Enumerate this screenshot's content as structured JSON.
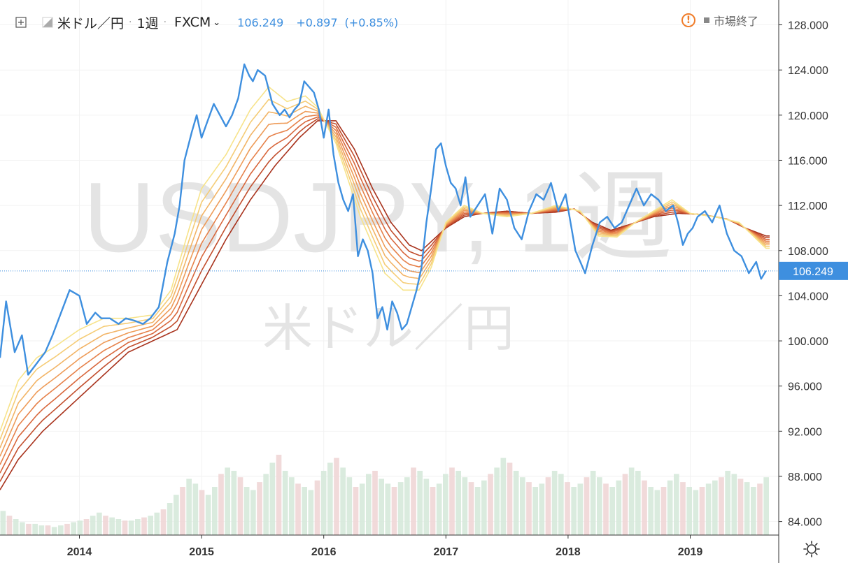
{
  "header": {
    "symbol": "米ドル／円",
    "interval": "1週",
    "exchange": "FXCM",
    "price": "106.249",
    "change": "+0.897",
    "change_pct": "(+0.85%)"
  },
  "status": {
    "market": "市場終了"
  },
  "watermark": {
    "main": "USDJPY, 1週",
    "sub": "米ドル／円"
  },
  "colors": {
    "price_line": "#3e8fdf",
    "ribbon_fast": "#f7e38a",
    "ribbon_slow": "#a8321c",
    "vol_up": "#d6e9da",
    "vol_down": "#f0d6d6",
    "warning": "#f07d2a"
  },
  "chart_data": {
    "type": "line",
    "title": "米ドル／円, 1週",
    "price_label": "106.249",
    "x_axis": {
      "start_year": 2013.35,
      "end_year": 2019.65,
      "ticks": [
        "2014",
        "2015",
        "2016",
        "2017",
        "2018",
        "2019"
      ],
      "tick_years": [
        2014,
        2015,
        2016,
        2017,
        2018,
        2019
      ]
    },
    "y_axis": {
      "range": [
        82.8,
        130.2
      ],
      "ticks": [
        "84.000",
        "88.000",
        "92.000",
        "96.000",
        "100.000",
        "104.000",
        "108.000",
        "112.000",
        "116.000",
        "120.000",
        "124.000",
        "128.000"
      ],
      "tick_values": [
        84,
        88,
        92,
        96,
        100,
        104,
        108,
        112,
        116,
        120,
        124,
        128
      ]
    },
    "price": {
      "x": [
        2013.35,
        2013.4,
        2013.47,
        2013.53,
        2013.58,
        2013.65,
        2013.72,
        2013.78,
        2013.85,
        2013.92,
        2014.0,
        2014.06,
        2014.13,
        2014.18,
        2014.25,
        2014.32,
        2014.38,
        2014.45,
        2014.52,
        2014.58,
        2014.65,
        2014.72,
        2014.78,
        2014.82,
        2014.86,
        2014.92,
        2014.96,
        2015.0,
        2015.05,
        2015.1,
        2015.15,
        2015.2,
        2015.25,
        2015.3,
        2015.35,
        2015.39,
        2015.42,
        2015.46,
        2015.52,
        2015.58,
        2015.64,
        2015.68,
        2015.72,
        2015.76,
        2015.8,
        2015.84,
        2015.88,
        2015.92,
        2015.96,
        2016.0,
        2016.04,
        2016.08,
        2016.12,
        2016.16,
        2016.2,
        2016.24,
        2016.28,
        2016.32,
        2016.36,
        2016.4,
        2016.44,
        2016.48,
        2016.52,
        2016.56,
        2016.6,
        2016.64,
        2016.68,
        2016.72,
        2016.76,
        2016.8,
        2016.84,
        2016.88,
        2016.92,
        2016.96,
        2017.0,
        2017.04,
        2017.08,
        2017.12,
        2017.16,
        2017.2,
        2017.26,
        2017.32,
        2017.38,
        2017.44,
        2017.5,
        2017.56,
        2017.62,
        2017.68,
        2017.74,
        2017.8,
        2017.86,
        2017.92,
        2017.98,
        2018.02,
        2018.06,
        2018.1,
        2018.14,
        2018.2,
        2018.26,
        2018.32,
        2018.38,
        2018.44,
        2018.5,
        2018.56,
        2018.62,
        2018.68,
        2018.74,
        2018.8,
        2018.86,
        2018.9,
        2018.94,
        2018.98,
        2019.02,
        2019.06,
        2019.12,
        2019.18,
        2019.24,
        2019.3,
        2019.36,
        2019.42,
        2019.48,
        2019.54,
        2019.58,
        2019.62
      ],
      "y": [
        98.5,
        103.5,
        99.0,
        100.5,
        97.0,
        98.0,
        99.0,
        100.5,
        102.5,
        104.5,
        104.0,
        101.5,
        102.5,
        102.0,
        102.0,
        101.5,
        102.0,
        101.8,
        101.5,
        102.0,
        103.0,
        107.0,
        109.5,
        112.0,
        116.0,
        118.5,
        120.0,
        118.0,
        119.5,
        121.0,
        120.0,
        119.0,
        120.0,
        121.5,
        124.5,
        123.5,
        123.0,
        124.0,
        123.5,
        121.0,
        120.0,
        120.5,
        119.8,
        120.5,
        121.0,
        123.0,
        122.5,
        122.0,
        120.5,
        118.0,
        120.5,
        116.5,
        114.0,
        112.5,
        111.5,
        113.0,
        107.5,
        109.0,
        108.0,
        106.0,
        102.0,
        103.0,
        101.0,
        103.5,
        102.5,
        101.0,
        101.5,
        103.0,
        104.5,
        106.5,
        110.5,
        113.5,
        117.0,
        117.5,
        115.5,
        114.0,
        113.5,
        112.0,
        114.5,
        111.0,
        112.0,
        113.0,
        109.5,
        113.5,
        112.5,
        110.0,
        109.0,
        111.5,
        113.0,
        112.5,
        114.0,
        111.5,
        113.0,
        110.5,
        108.0,
        107.0,
        106.0,
        108.5,
        110.5,
        111.0,
        110.0,
        110.5,
        112.0,
        113.5,
        112.0,
        113.0,
        112.5,
        111.5,
        112.0,
        110.5,
        108.5,
        109.5,
        110.0,
        111.0,
        111.5,
        110.5,
        112.0,
        109.5,
        108.0,
        107.5,
        106.0,
        107.0,
        105.5,
        106.2
      ],
      "color": "#3e8fdf"
    },
    "ribbon": {
      "lines": 8,
      "fast_x": [
        2013.35,
        2013.5,
        2013.65,
        2013.8,
        2014.0,
        2014.2,
        2014.4,
        2014.6,
        2014.75,
        2014.9,
        2015.0,
        2015.2,
        2015.4,
        2015.55,
        2015.7,
        2015.85,
        2015.95,
        2016.1,
        2016.3,
        2016.5,
        2016.65,
        2016.78,
        2016.88,
        2017.0,
        2017.15,
        2017.3,
        2017.5,
        2017.7,
        2017.9,
        2018.1,
        2018.25,
        2018.4,
        2018.55,
        2018.7,
        2018.85,
        2019.0,
        2019.2,
        2019.4,
        2019.62
      ],
      "fast_y": [
        92.0,
        96.5,
        98.5,
        99.5,
        101.0,
        102.0,
        102.0,
        102.3,
        104.5,
        110.0,
        113.5,
        116.5,
        120.5,
        122.5,
        121.2,
        121.7,
        120.7,
        117.5,
        111.0,
        106.0,
        104.5,
        104.5,
        106.5,
        110.5,
        112.0,
        111.3,
        111.0,
        111.3,
        112.0,
        111.5,
        109.3,
        109.2,
        110.5,
        111.5,
        112.5,
        111.3,
        111.0,
        110.5,
        108.2
      ],
      "slow_x": [
        2013.35,
        2013.5,
        2013.7,
        2014.0,
        2014.2,
        2014.4,
        2014.6,
        2014.8,
        2015.0,
        2015.2,
        2015.4,
        2015.6,
        2015.8,
        2015.95,
        2016.1,
        2016.25,
        2016.4,
        2016.55,
        2016.7,
        2016.8,
        2016.9,
        2017.0,
        2017.15,
        2017.3,
        2017.5,
        2017.7,
        2017.9,
        2018.05,
        2018.2,
        2018.35,
        2018.5,
        2018.7,
        2018.9,
        2019.1,
        2019.3,
        2019.45,
        2019.62
      ],
      "slow_y": [
        86.8,
        89.5,
        92.0,
        95.0,
        97.0,
        99.0,
        100.0,
        101.0,
        105.0,
        109.0,
        112.5,
        115.5,
        118.0,
        119.5,
        119.5,
        117.0,
        113.5,
        110.5,
        108.5,
        108.0,
        109.0,
        110.0,
        111.0,
        111.3,
        111.5,
        111.3,
        111.4,
        111.7,
        110.5,
        109.8,
        110.3,
        111.0,
        111.3,
        111.2,
        110.8,
        110.0,
        109.3
      ],
      "colors": [
        "#f7e38a",
        "#f5cc76",
        "#f2b466",
        "#ee9b58",
        "#e6814a",
        "#d8673c",
        "#c24e2d",
        "#a8321c"
      ]
    },
    "volume": {
      "note": "background volume bars, relative heights 0-1",
      "heights": [
        0.15,
        0.12,
        0.1,
        0.08,
        0.07,
        0.07,
        0.06,
        0.06,
        0.05,
        0.06,
        0.07,
        0.08,
        0.09,
        0.1,
        0.12,
        0.14,
        0.12,
        0.11,
        0.1,
        0.09,
        0.09,
        0.1,
        0.11,
        0.12,
        0.14,
        0.16,
        0.2,
        0.25,
        0.3,
        0.35,
        0.32,
        0.28,
        0.25,
        0.3,
        0.38,
        0.42,
        0.4,
        0.36,
        0.3,
        0.28,
        0.33,
        0.38,
        0.45,
        0.5,
        0.4,
        0.36,
        0.32,
        0.3,
        0.28,
        0.34,
        0.4,
        0.45,
        0.48,
        0.42,
        0.36,
        0.3,
        0.32,
        0.38,
        0.4,
        0.35,
        0.32,
        0.3,
        0.33,
        0.36,
        0.42,
        0.4,
        0.35,
        0.3,
        0.32,
        0.38,
        0.42,
        0.4,
        0.36,
        0.33,
        0.3,
        0.34,
        0.38,
        0.42,
        0.48,
        0.45,
        0.4,
        0.36,
        0.33,
        0.3,
        0.32,
        0.36,
        0.4,
        0.38,
        0.33,
        0.3,
        0.32,
        0.36,
        0.4,
        0.36,
        0.32,
        0.3,
        0.34,
        0.38,
        0.42,
        0.4,
        0.34,
        0.3,
        0.28,
        0.3,
        0.34,
        0.38,
        0.33,
        0.3,
        0.28,
        0.3,
        0.32,
        0.34,
        0.36,
        0.4,
        0.38,
        0.35,
        0.33,
        0.3,
        0.32,
        0.36
      ]
    }
  }
}
